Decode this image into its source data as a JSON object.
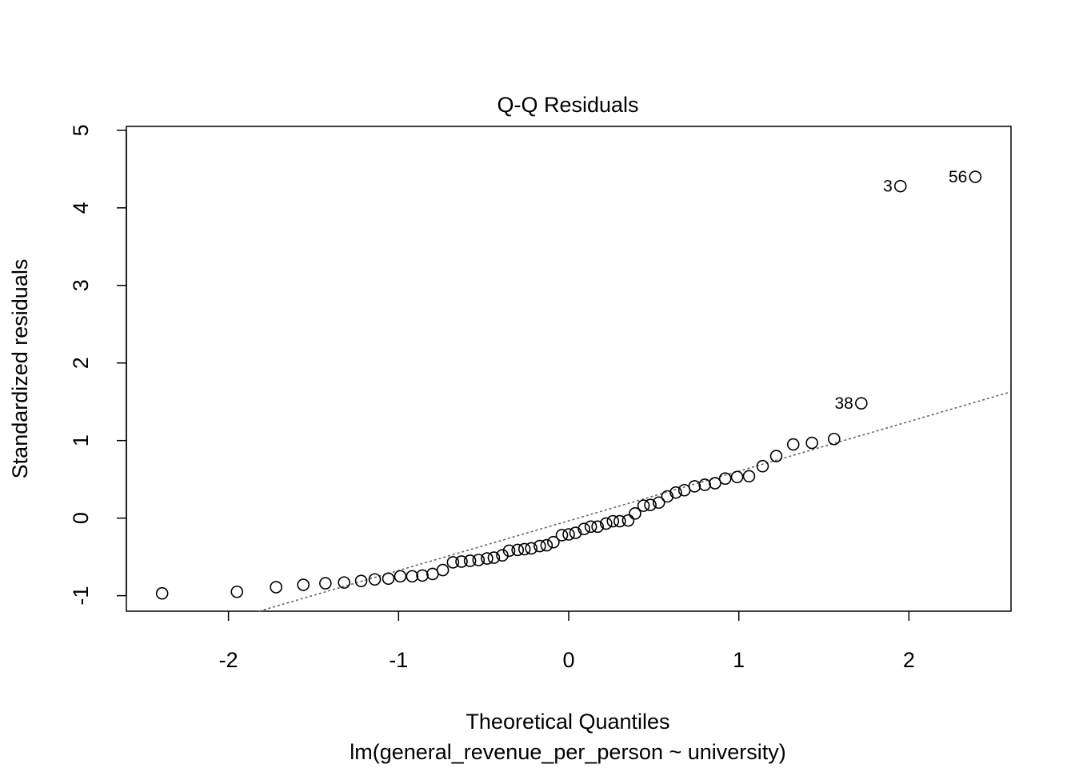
{
  "chart_data": {
    "type": "scatter",
    "title": "Q-Q Residuals",
    "xlabel": "Theoretical Quantiles",
    "subtitle": "lm(general_revenue_per_person ~ university)",
    "ylabel": "Standardized residuals",
    "xlim": [
      -2.6,
      2.6
    ],
    "ylim": [
      -1.2,
      5.05
    ],
    "xticks": [
      -2,
      -1,
      0,
      1,
      2
    ],
    "xtick_labels": [
      "-2",
      "-1",
      "0",
      "1",
      "2"
    ],
    "yticks": [
      -1,
      0,
      1,
      2,
      3,
      4,
      5
    ],
    "ytick_labels": [
      "-1",
      "0",
      "1",
      "2",
      "3",
      "4",
      "5"
    ],
    "reference_line": {
      "intercept": -0.035,
      "slope": 0.64,
      "style": "dotted",
      "color": "#666666"
    },
    "points": [
      {
        "x": -2.39,
        "y": -0.97
      },
      {
        "x": -1.95,
        "y": -0.95
      },
      {
        "x": -1.72,
        "y": -0.89
      },
      {
        "x": -1.56,
        "y": -0.86
      },
      {
        "x": -1.43,
        "y": -0.84
      },
      {
        "x": -1.32,
        "y": -0.83
      },
      {
        "x": -1.22,
        "y": -0.81
      },
      {
        "x": -1.14,
        "y": -0.79
      },
      {
        "x": -1.06,
        "y": -0.78
      },
      {
        "x": -0.99,
        "y": -0.75
      },
      {
        "x": -0.92,
        "y": -0.75
      },
      {
        "x": -0.86,
        "y": -0.74
      },
      {
        "x": -0.8,
        "y": -0.72
      },
      {
        "x": -0.74,
        "y": -0.67
      },
      {
        "x": -0.68,
        "y": -0.57
      },
      {
        "x": -0.63,
        "y": -0.56
      },
      {
        "x": -0.58,
        "y": -0.55
      },
      {
        "x": -0.53,
        "y": -0.54
      },
      {
        "x": -0.48,
        "y": -0.52
      },
      {
        "x": -0.44,
        "y": -0.51
      },
      {
        "x": -0.39,
        "y": -0.48
      },
      {
        "x": -0.35,
        "y": -0.42
      },
      {
        "x": -0.3,
        "y": -0.41
      },
      {
        "x": -0.26,
        "y": -0.4
      },
      {
        "x": -0.22,
        "y": -0.39
      },
      {
        "x": -0.17,
        "y": -0.36
      },
      {
        "x": -0.13,
        "y": -0.35
      },
      {
        "x": -0.09,
        "y": -0.31
      },
      {
        "x": -0.04,
        "y": -0.22
      },
      {
        "x": 0.0,
        "y": -0.21
      },
      {
        "x": 0.04,
        "y": -0.19
      },
      {
        "x": 0.09,
        "y": -0.14
      },
      {
        "x": 0.13,
        "y": -0.11
      },
      {
        "x": 0.17,
        "y": -0.11
      },
      {
        "x": 0.22,
        "y": -0.07
      },
      {
        "x": 0.26,
        "y": -0.04
      },
      {
        "x": 0.3,
        "y": -0.04
      },
      {
        "x": 0.35,
        "y": -0.03
      },
      {
        "x": 0.39,
        "y": 0.06
      },
      {
        "x": 0.44,
        "y": 0.16
      },
      {
        "x": 0.48,
        "y": 0.17
      },
      {
        "x": 0.53,
        "y": 0.2
      },
      {
        "x": 0.58,
        "y": 0.28
      },
      {
        "x": 0.63,
        "y": 0.33
      },
      {
        "x": 0.68,
        "y": 0.36
      },
      {
        "x": 0.74,
        "y": 0.41
      },
      {
        "x": 0.8,
        "y": 0.43
      },
      {
        "x": 0.86,
        "y": 0.45
      },
      {
        "x": 0.92,
        "y": 0.51
      },
      {
        "x": 0.99,
        "y": 0.53
      },
      {
        "x": 1.06,
        "y": 0.54
      },
      {
        "x": 1.14,
        "y": 0.67
      },
      {
        "x": 1.22,
        "y": 0.8
      },
      {
        "x": 1.32,
        "y": 0.95
      },
      {
        "x": 1.43,
        "y": 0.97
      },
      {
        "x": 1.56,
        "y": 1.02
      },
      {
        "x": 1.72,
        "y": 1.48,
        "label": "38"
      },
      {
        "x": 1.95,
        "y": 4.28,
        "label": "3"
      },
      {
        "x": 2.39,
        "y": 4.4,
        "label": "56"
      }
    ]
  }
}
